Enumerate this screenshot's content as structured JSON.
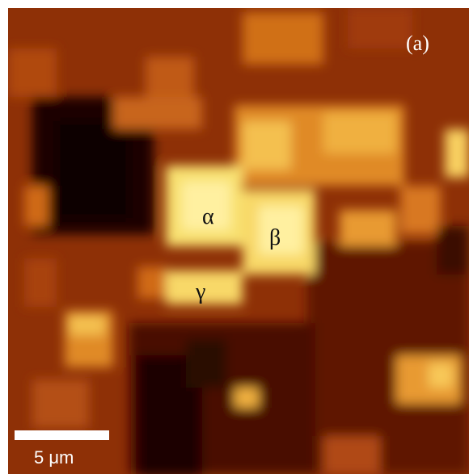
{
  "panel_label": "(a)",
  "annotations": [
    "α",
    "β",
    "γ"
  ],
  "scale_bar": {
    "label": "5 μm"
  }
}
